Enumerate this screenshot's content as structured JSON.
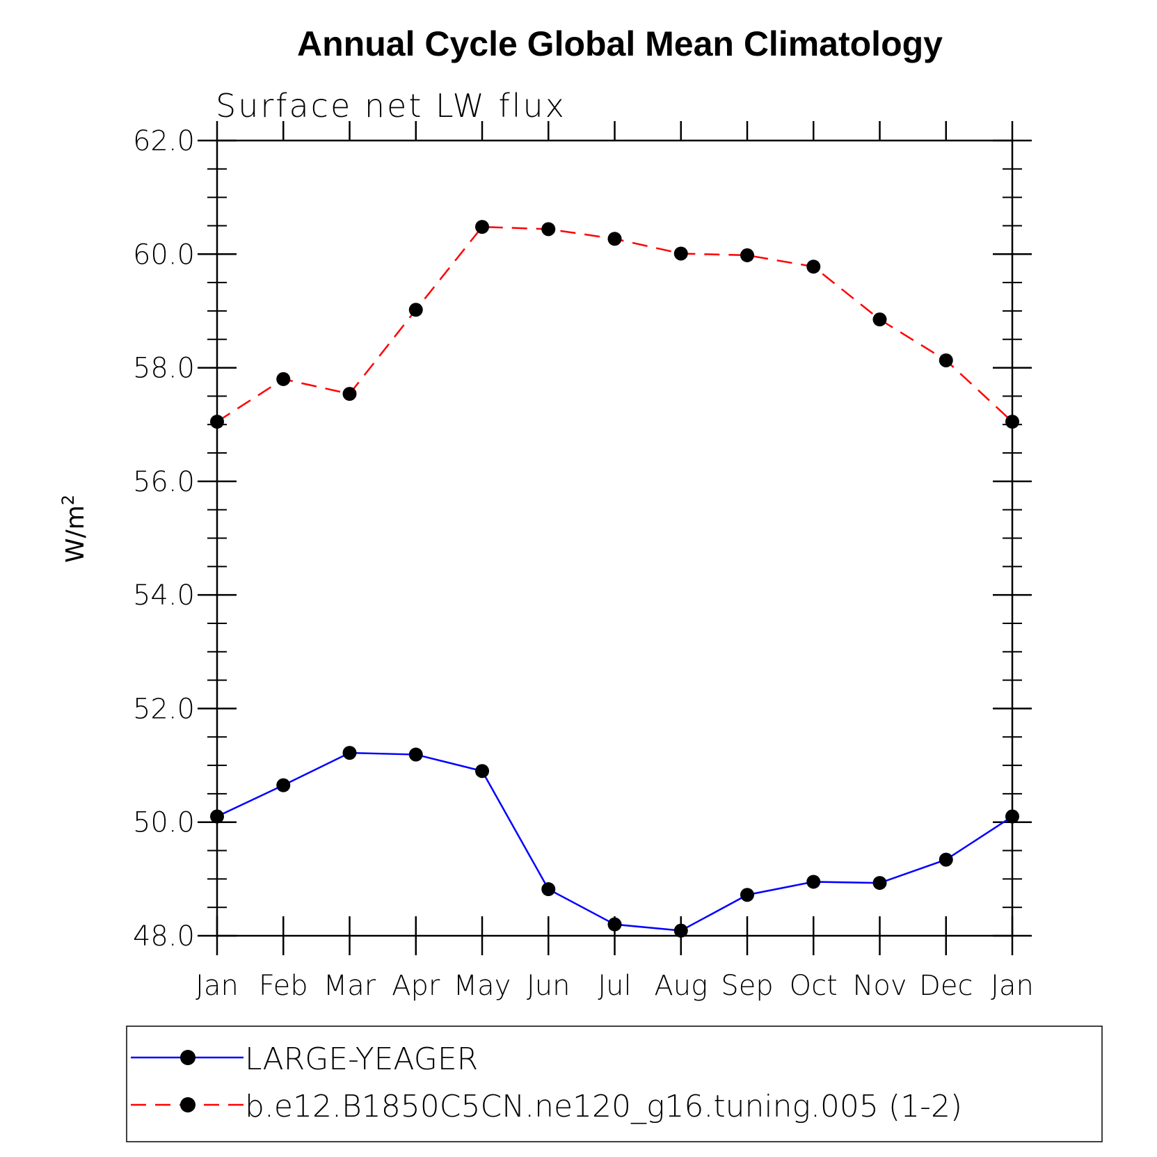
{
  "chart_data": {
    "type": "line",
    "title": "Annual Cycle Global Mean Climatology",
    "subtitle": "Surface net LW flux",
    "ylabel": "W/m",
    "ylabel_sup": "2",
    "categories": [
      "Jan",
      "Feb",
      "Mar",
      "Apr",
      "May",
      "Jun",
      "Jul",
      "Aug",
      "Sep",
      "Oct",
      "Nov",
      "Dec",
      "Jan"
    ],
    "ylim": [
      48.0,
      62.0
    ],
    "yticks": [
      "48.0",
      "50.0",
      "52.0",
      "54.0",
      "56.0",
      "58.0",
      "60.0",
      "62.0"
    ],
    "series": [
      {
        "name": "LARGE-YEAGER",
        "color": "#0000ff",
        "dash": "solid",
        "values": [
          50.1,
          50.65,
          51.22,
          51.19,
          50.9,
          48.82,
          48.2,
          48.09,
          48.72,
          48.95,
          48.93,
          49.34,
          50.1
        ]
      },
      {
        "name": "b.e12.B1850C5CN.ne120_g16.tuning.005 (1-2)",
        "color": "#ff0000",
        "dash": "dashed",
        "values": [
          57.05,
          57.8,
          57.54,
          59.02,
          60.48,
          60.44,
          60.27,
          60.01,
          59.98,
          59.78,
          58.85,
          58.13,
          57.05
        ]
      }
    ]
  }
}
